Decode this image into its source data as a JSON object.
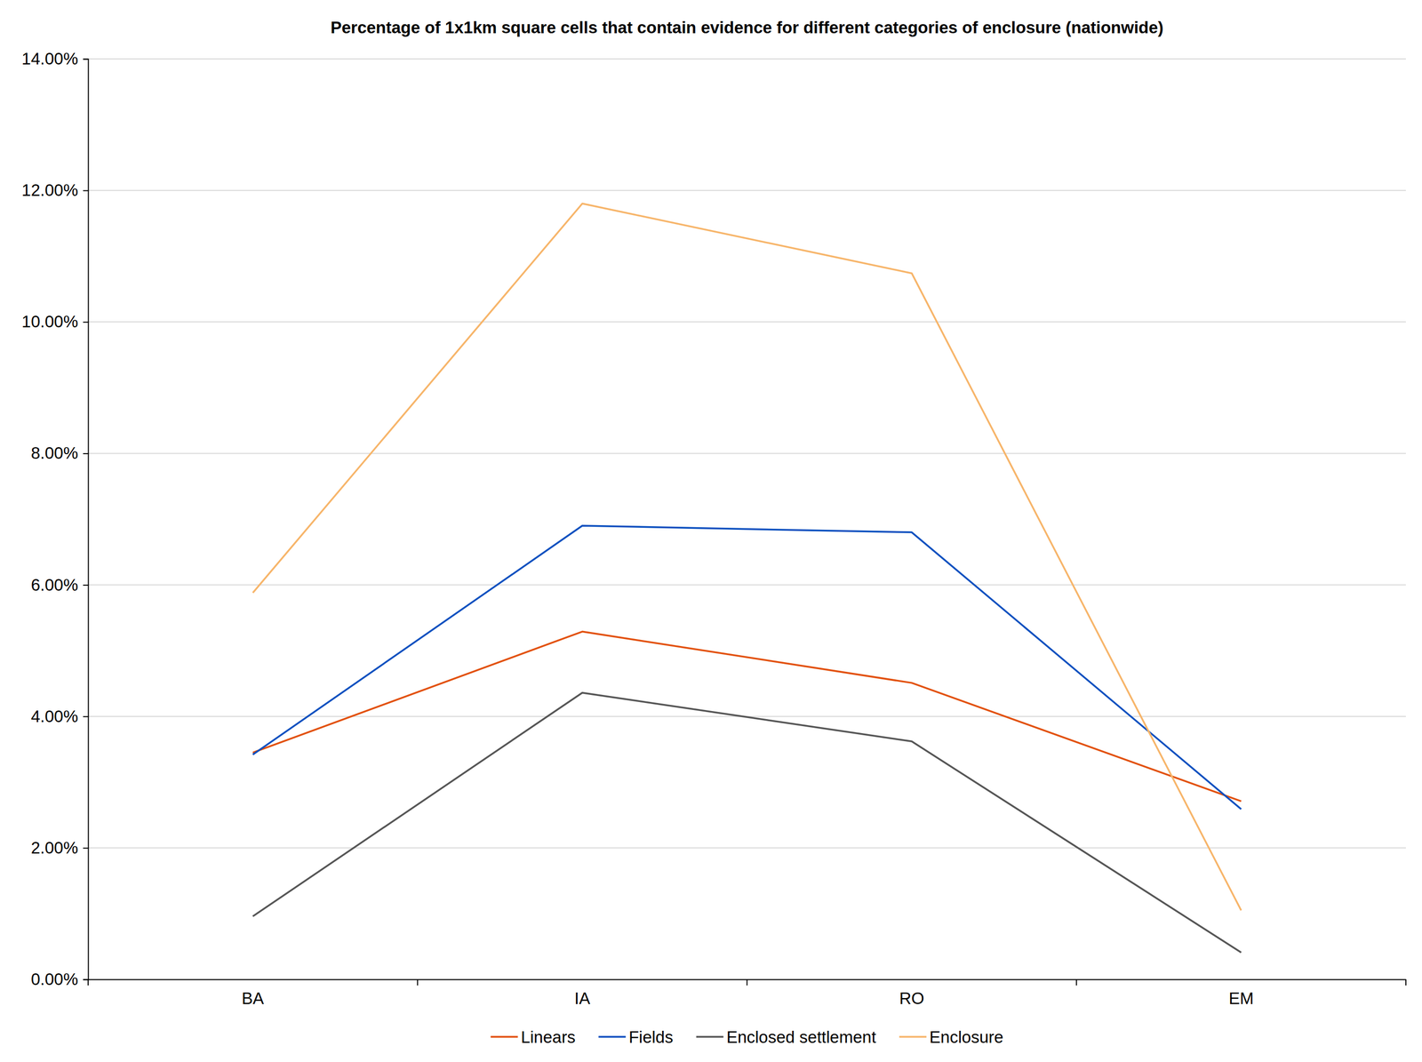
{
  "chart_data": {
    "type": "line",
    "title": "Percentage of 1x1km square cells that contain evidence for different categories of enclosure (nationwide)",
    "categories": [
      "BA",
      "IA",
      "RO",
      "EM"
    ],
    "series": [
      {
        "name": "Linears",
        "color": "#e2500a",
        "values": [
          3.45,
          5.29,
          4.51,
          2.71
        ]
      },
      {
        "name": "Fields",
        "color": "#0a4fbf",
        "values": [
          3.42,
          6.9,
          6.8,
          2.59
        ]
      },
      {
        "name": "Enclosed settlement",
        "color": "#555555",
        "values": [
          0.96,
          4.36,
          3.62,
          0.41
        ]
      },
      {
        "name": "Enclosure",
        "color": "#f7b56a",
        "values": [
          5.88,
          11.8,
          10.74,
          1.05
        ]
      }
    ],
    "ylim": [
      0,
      14
    ],
    "yticks": [
      {
        "value": 0,
        "label": "0.00%"
      },
      {
        "value": 2,
        "label": "2.00%"
      },
      {
        "value": 4,
        "label": "4.00%"
      },
      {
        "value": 6,
        "label": "6.00%"
      },
      {
        "value": 8,
        "label": "8.00%"
      },
      {
        "value": 10,
        "label": "10.00%"
      },
      {
        "value": 12,
        "label": "12.00%"
      },
      {
        "value": 14,
        "label": "14.00%"
      }
    ],
    "grid": true,
    "legend": "bottom"
  }
}
